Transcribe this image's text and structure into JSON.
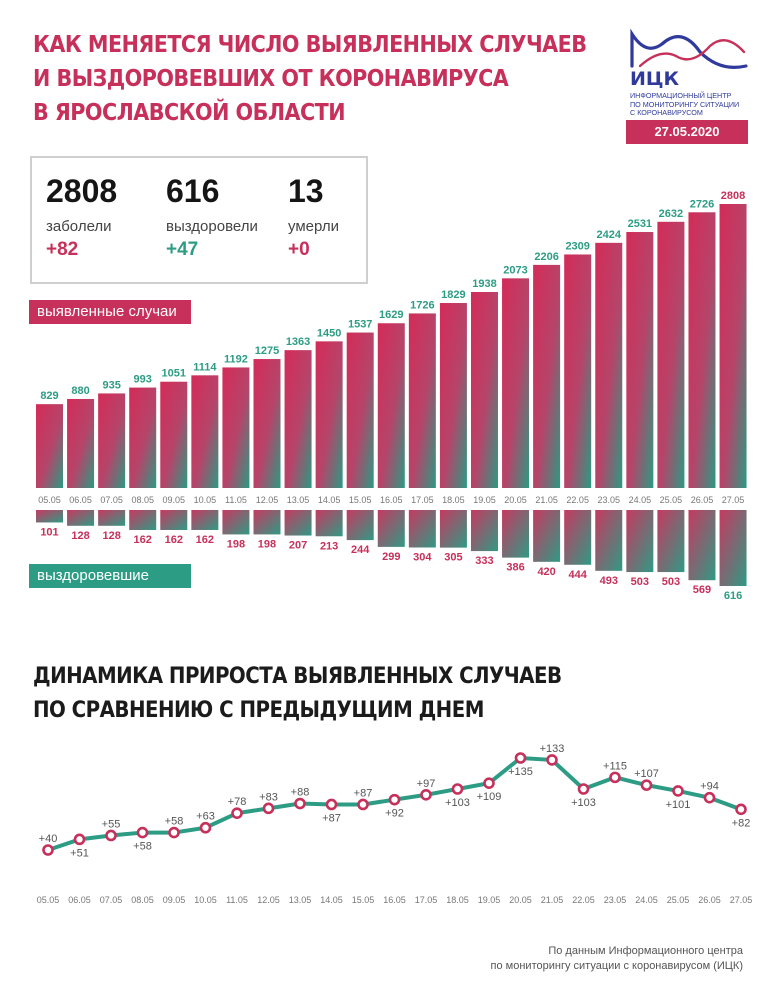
{
  "header": {
    "title_lines": [
      "КАК МЕНЯЕТСЯ ЧИСЛО ВЫЯВЛЕННЫХ СЛУЧАЕВ",
      "И ВЫЗДОРОВЕВШИХ ОТ КОРОНАВИРУСА",
      "В ЯРОСЛАВСКОЙ ОБЛАСТИ"
    ],
    "logo_name": "ИЦК",
    "logo_lines": [
      "ИНФОРМАЦИОННЫЙ ЦЕНТР",
      "ПО МОНИТОРИНГУ СИТУАЦИИ",
      "С КОРОНАВИРУСОМ"
    ],
    "date": "27.05.2020"
  },
  "stats": [
    {
      "value": "2808",
      "label": "заболели",
      "delta": "+82",
      "color": "#c6305a"
    },
    {
      "value": "616",
      "label": "выздоровели",
      "delta": "+47",
      "color": "#2d9c85"
    },
    {
      "value": "13",
      "label": "умерли",
      "delta": "+0",
      "color": "#c6305a"
    }
  ],
  "labels": {
    "cases_tag": "выявленные случаи",
    "recovered_tag": "выздоровевшие"
  },
  "subtitle_lines": [
    "ДИНАМИКА ПРИРОСТА ВЫЯВЛЕННЫХ СЛУЧАЕВ",
    "ПО СРАВНЕНИЮ С ПРЕДЫДУЩИМ ДНЕМ"
  ],
  "footnote_lines": [
    "По данным Информационного центра",
    "по мониторингу ситуации с коронавирусом (ИЦК)"
  ],
  "colors": {
    "red": "#c6305a",
    "green": "#2d9c85"
  },
  "chart_data": [
    {
      "type": "bar",
      "categories": [
        "05.05",
        "06.05",
        "07.05",
        "08.05",
        "09.05",
        "10.05",
        "11.05",
        "12.05",
        "13.05",
        "14.05",
        "15.05",
        "16.05",
        "17.05",
        "18.05",
        "19.05",
        "20.05",
        "21.05",
        "22.05",
        "23.05",
        "24.05",
        "25.05",
        "26.05",
        "27.05"
      ],
      "series": [
        {
          "name": "выявленные случаи",
          "values": [
            829,
            880,
            935,
            993,
            1051,
            1114,
            1192,
            1275,
            1363,
            1450,
            1537,
            1629,
            1726,
            1829,
            1938,
            2073,
            2206,
            2309,
            2424,
            2531,
            2632,
            2726,
            2808
          ]
        },
        {
          "name": "выздоровевшие",
          "values": [
            101,
            128,
            128,
            162,
            162,
            162,
            198,
            198,
            207,
            213,
            244,
            299,
            304,
            305,
            333,
            386,
            420,
            444,
            493,
            503,
            503,
            569,
            616
          ]
        }
      ]
    },
    {
      "type": "line",
      "categories": [
        "05.05",
        "06.05",
        "07.05",
        "08.05",
        "09.05",
        "10.05",
        "11.05",
        "12.05",
        "13.05",
        "14.05",
        "15.05",
        "16.05",
        "17.05",
        "18.05",
        "19.05",
        "20.05",
        "21.05",
        "22.05",
        "23.05",
        "24.05",
        "25.05",
        "26.05",
        "27.05"
      ],
      "values": [
        40,
        51,
        55,
        58,
        58,
        63,
        78,
        83,
        88,
        87,
        87,
        92,
        97,
        103,
        109,
        135,
        133,
        103,
        115,
        107,
        101,
        94,
        82
      ],
      "labels": [
        "+40",
        "+51",
        "+55",
        "+58",
        "+58",
        "+63",
        "+78",
        "+83",
        "+88",
        "+87",
        "+87",
        "+92",
        "+97",
        "+103",
        "+109",
        "+135",
        "+133",
        "+103",
        "+115",
        "+107",
        "+101",
        "+94",
        "+82"
      ]
    }
  ]
}
